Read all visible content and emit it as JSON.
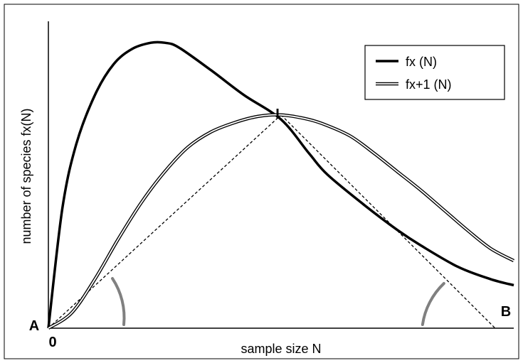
{
  "chart_data": {
    "type": "line",
    "xlabel": "sample size  N",
    "ylabel": "number  of  species   fx(N)",
    "xlim": [
      0,
      100
    ],
    "ylim": [
      0,
      100
    ],
    "grid": false,
    "legend_position": "top-right",
    "series": [
      {
        "name": "fx (N)",
        "style": "solid-thick",
        "color": "#000000",
        "x": [
          0,
          3,
          6,
          10,
          14,
          18,
          22,
          25,
          28,
          35,
          42,
          50,
          56,
          60,
          68,
          75,
          80,
          88,
          95,
          100
        ],
        "y": [
          0,
          39,
          60,
          76,
          86,
          91,
          93,
          93,
          91.5,
          84,
          76,
          68,
          57,
          50,
          40,
          32,
          27,
          20,
          16,
          14
        ]
      },
      {
        "name": "fx+1 (N)",
        "style": "double-line",
        "color": "#000000",
        "x": [
          0,
          5,
          10,
          15,
          20,
          25,
          30,
          35,
          40,
          45,
          50,
          56,
          60,
          65,
          70,
          75,
          80,
          85,
          90,
          95,
          100
        ],
        "y": [
          0,
          5,
          16,
          29,
          41,
          51,
          59,
          64,
          67,
          69,
          69.5,
          68,
          66,
          62.5,
          57,
          51,
          45,
          38.5,
          32,
          26,
          22
        ]
      }
    ],
    "reference_lines": [
      {
        "style": "dashed",
        "x": [
          0,
          50
        ],
        "y": [
          0,
          69.5
        ]
      },
      {
        "style": "dashed",
        "x": [
          50,
          96
        ],
        "y": [
          69.5,
          0
        ]
      }
    ],
    "annotations": [
      {
        "text": "I",
        "at": "intersection of the two curves"
      },
      {
        "text": "A",
        "at": "origin"
      },
      {
        "text": "B",
        "at": "end of dashed line on x-axis"
      },
      {
        "text": "0",
        "at": "x-axis origin"
      }
    ],
    "angle_arcs": [
      {
        "vertex": "A",
        "color": "#808080"
      },
      {
        "vertex": "B",
        "color": "#808080"
      }
    ]
  }
}
